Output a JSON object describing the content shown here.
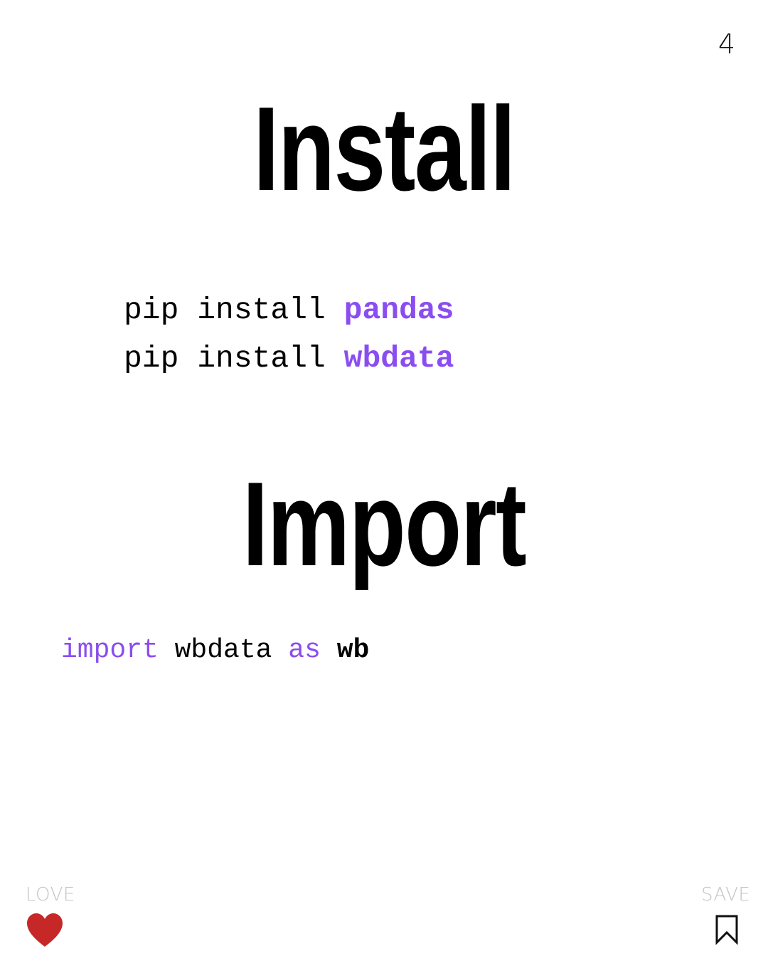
{
  "page_number": "4",
  "install": {
    "heading": "Install",
    "lines": [
      {
        "command": "pip install ",
        "package": "pandas"
      },
      {
        "command": "pip install ",
        "package": "wbdata"
      }
    ]
  },
  "import": {
    "heading": "Import",
    "line": {
      "keyword_import": "import",
      "module": " wbdata ",
      "keyword_as": "as",
      "space": " ",
      "alias": "wb"
    }
  },
  "footer": {
    "love_label": "LOVE",
    "save_label": "SAVE",
    "love_icon": "heart-icon",
    "save_icon": "bookmark-icon"
  },
  "colors": {
    "accent_purple": "#8a4df0",
    "heart_red": "#c62828",
    "label_gray": "#c4c4c4"
  }
}
